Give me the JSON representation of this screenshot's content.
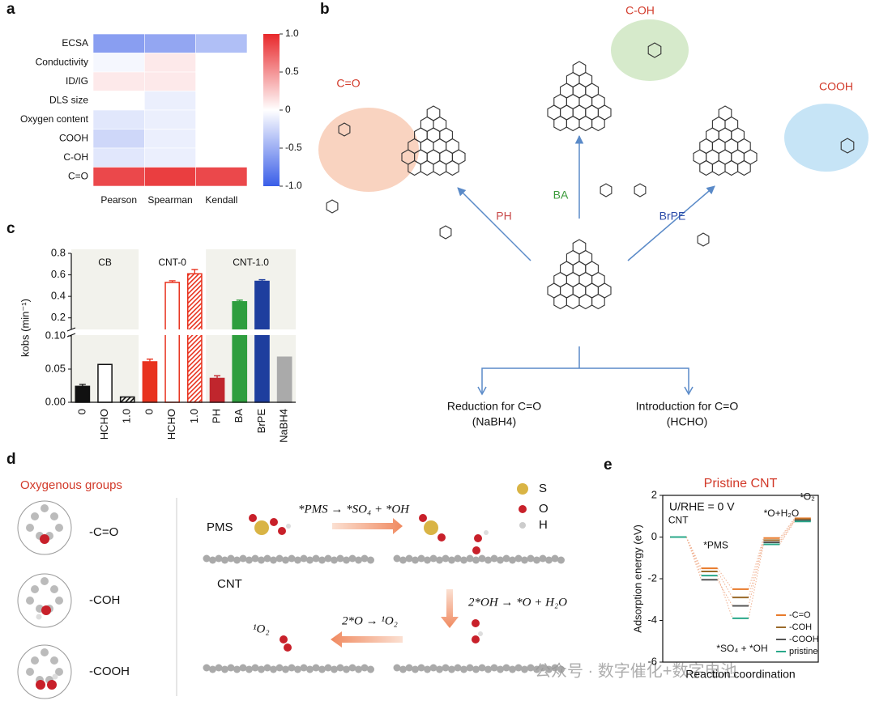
{
  "panel_labels": [
    "a",
    "b",
    "c",
    "d",
    "e"
  ],
  "chart_data": [
    {
      "type": "heatmap",
      "rows": [
        "ECSA",
        "Conductivity",
        "ID/IG",
        "DLS size",
        "Oxygen content",
        "COOH",
        "C-OH",
        "C=O"
      ],
      "columns": [
        "Pearson",
        "Spearman",
        "Kendall"
      ],
      "values": [
        [
          -0.6,
          -0.55,
          -0.4
        ],
        [
          -0.05,
          0.1,
          0
        ],
        [
          0.1,
          0.1,
          0
        ],
        [
          0,
          -0.1,
          0
        ],
        [
          -0.15,
          -0.1,
          0
        ],
        [
          -0.25,
          -0.1,
          0
        ],
        [
          -0.15,
          -0.1,
          0
        ],
        [
          0.85,
          0.9,
          0.85
        ]
      ],
      "zlim": [
        -1,
        1
      ],
      "zticks": [
        {
          "value": 1,
          "label": "1.0"
        },
        0.5,
        0,
        -0.5,
        {
          "value": -1,
          "label": "-1.0"
        }
      ],
      "colormap": [
        "#3a5ee8",
        "#ffffff",
        "#e8282b"
      ]
    },
    {
      "type": "bar",
      "y_label": "kobs (min⁻¹)",
      "groups": [
        {
          "name": "CB",
          "count": 3
        },
        {
          "name": "CNT-0",
          "count": 3
        },
        {
          "name": "CNT-1.0",
          "count": 4
        }
      ],
      "categories": [
        "0",
        "HCHO",
        "1.0",
        "0",
        "HCHO",
        "1.0",
        "PH",
        "BA",
        "BrPE",
        "NaBH4"
      ],
      "values": [
        0.024,
        0.057,
        0.008,
        0.061,
        0.53,
        0.61,
        0.036,
        0.35,
        0.54,
        0.068
      ],
      "errors": [
        0.003,
        null,
        null,
        0.004,
        0.015,
        0.04,
        0.004,
        0.015,
        0.015,
        null
      ],
      "colors": [
        "#111111",
        "#111111",
        "#111111",
        "#e8321e",
        "#e8321e",
        "#e8321e",
        "#c0262d",
        "#2e9e3e",
        "#1e3e9e",
        "#aaaaaa"
      ],
      "styles": [
        "solid",
        "hollow",
        "hatched",
        "solid",
        "hollow",
        "hatched",
        "solid",
        "solid",
        "solid",
        "solid"
      ],
      "ylim": [
        0,
        0.8
      ],
      "axis_break": 0.1,
      "yticks": [
        {
          "value": 0,
          "label": "0.00"
        },
        0.05,
        {
          "value": 0.1,
          "label": "0.10"
        },
        0.2,
        0.4,
        0.6,
        0.8
      ]
    },
    {
      "type": "levels",
      "title": "Pristine CNT",
      "annotation": "U/RHE = 0 V",
      "x_label": "Reaction coordination",
      "y_label": "Adsorption energy (eV)",
      "categories": [
        "CNT",
        "*PMS",
        "*SO₄ + *OH",
        "*O+H₂O",
        "¹O₂"
      ],
      "series": [
        {
          "name": "-C=O",
          "color": "#e87a2a",
          "values": [
            0,
            -1.5,
            -2.5,
            -0.05,
            0.9
          ]
        },
        {
          "name": "-COH",
          "color": "#9a6a2a",
          "values": [
            0,
            -1.65,
            -2.9,
            -0.15,
            0.85
          ]
        },
        {
          "name": "-COOH",
          "color": "#555555",
          "values": [
            0,
            -2.05,
            -3.3,
            -0.25,
            0.8
          ]
        },
        {
          "name": "pristine",
          "color": "#2aa88a",
          "values": [
            0,
            -1.85,
            -3.9,
            -0.35,
            0.75
          ]
        }
      ],
      "ylim": [
        -6,
        2
      ],
      "yticks": [
        -6,
        -4,
        -2,
        0,
        2
      ],
      "legend": "lower right"
    }
  ],
  "scheme_b": {
    "groups": [
      "C=O",
      "C-OH",
      "COOH"
    ],
    "reagents": [
      "PH",
      "BA",
      "BrPE"
    ],
    "branches": [
      {
        "label": "Reduction for C=O",
        "reagent": "(NaBH4)"
      },
      {
        "label": "Introduction for C=O",
        "reagent": "(HCHO)"
      }
    ]
  },
  "scheme_d": {
    "title": "Oxygenous groups",
    "groups": [
      "-C=O",
      "-COH",
      "-COOH"
    ],
    "species": [
      "PMS",
      "CNT"
    ],
    "steps": [
      "*PMS → *SO₄ + *OH",
      "2*OH → *O + H₂O",
      "2*O → ¹O₂"
    ],
    "product": "¹O₂",
    "atoms": [
      "S",
      "O",
      "H"
    ]
  },
  "watermark": "公众号 · 数字催化+数字电池"
}
